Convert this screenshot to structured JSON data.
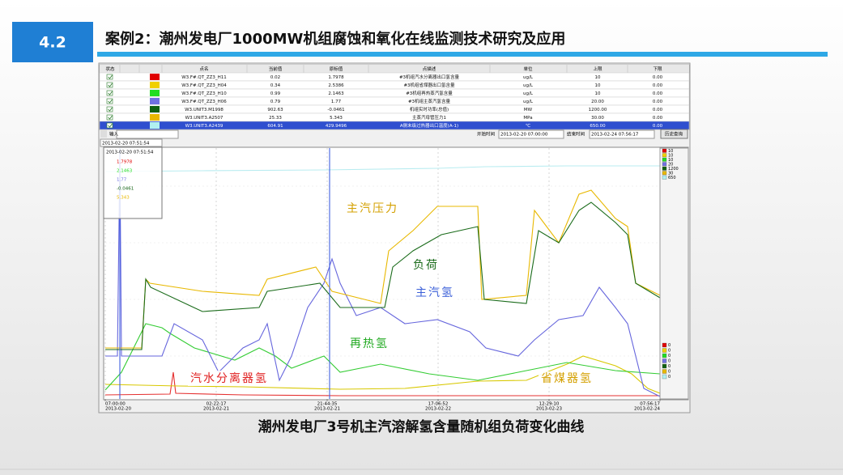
{
  "header": {
    "section": "4.2",
    "title": "案例2：潮州发电厂1000MW机组腐蚀和氧化在线监测技术研究及应用"
  },
  "table": {
    "columns": [
      "状态",
      "点名",
      "当前值",
      "原标值",
      "点描述",
      "单位",
      "上限",
      "下限"
    ],
    "rows": [
      {
        "color": "#e00000",
        "point": "W3.F#.QT_ZZ3_H11",
        "current": "0.02",
        "original": "1.7978",
        "description": "#3机组汽水分离器出口氢含量",
        "unit": "ug/L",
        "upper": "10",
        "lower": "0.00"
      },
      {
        "color": "#f0d000",
        "point": "W3.F#.QT_ZZ3_H04",
        "current": "0.34",
        "original": "2.5386",
        "description": "#3机组省煤器出口氢含量",
        "unit": "ug/L",
        "upper": "10",
        "lower": "0.00"
      },
      {
        "color": "#22dd22",
        "point": "W3.F#.QT_ZZ3_H10",
        "current": "0.99",
        "original": "2.1463",
        "description": "#3机组再热蒸汽氢含量",
        "unit": "ug/L",
        "upper": "10",
        "lower": "0.00"
      },
      {
        "color": "#7070e0",
        "point": "W3.F#.QT_ZZ3_H06",
        "current": "0.79",
        "original": "1.77",
        "description": "#3机组主蒸汽氢含量",
        "unit": "ug/L",
        "upper": "20.00",
        "lower": "0.00"
      },
      {
        "color": "#106010",
        "point": "W3.UNIT3.M1998",
        "current": "902.63",
        "original": "-0.0461",
        "description": "机组实时功率(总值)",
        "unit": "MW",
        "upper": "1200.00",
        "lower": "0.00"
      },
      {
        "color": "#e8b800",
        "point": "W3.UNIT3.A2507",
        "current": "25.33",
        "original": "5.343",
        "description": "主蒸汽母管压力1",
        "unit": "MPa",
        "upper": "30.00",
        "lower": "0.00"
      },
      {
        "color": "#b0f0f0",
        "point": "W3.UNIT3.A2439",
        "current": "604.91",
        "original": "429.9496",
        "description": "A侧末级过热器出口温度(A-1)",
        "unit": "℃",
        "upper": "650.00",
        "lower": "0.00"
      }
    ]
  },
  "toolbar": {
    "input": "输入",
    "start_label": "开始时间",
    "start": "2013-02-20 07:00:00",
    "end_label": "结束时间",
    "end": "2013-02-24 07:56:17",
    "button": "历史查询"
  },
  "cursor": {
    "time": "2013-02-20 07:51:54",
    "values": [
      "1.7978",
      "2.1463",
      "1.77",
      "-0.0461",
      "5.343"
    ]
  },
  "annotations": [
    "主汽压力",
    "负荷",
    "主汽氢",
    "再热氢",
    "汽水分离器氢",
    "省煤器氢"
  ],
  "x_labels": [
    {
      "time": "07:00:00",
      "date": "2013-02-20"
    },
    {
      "time": "02:22:17",
      "date": "2013-02-21"
    },
    {
      "time": "21:44:35",
      "date": "2013-02-21"
    },
    {
      "time": "17:06:52",
      "date": "2013-02-22"
    },
    {
      "time": "12:29:10",
      "date": "2013-02-23"
    },
    {
      "time": "07:56:17",
      "date": "2013-02-24"
    }
  ],
  "scale_top": [
    "10",
    "10",
    "10",
    "20",
    "1200",
    "30",
    "650"
  ],
  "scale_bottom": [
    "0",
    "0",
    "0",
    "0",
    "0",
    "0",
    "0"
  ],
  "caption": "潮州发电厂3号机主汽溶解氢含量随机组负荷变化曲线"
}
